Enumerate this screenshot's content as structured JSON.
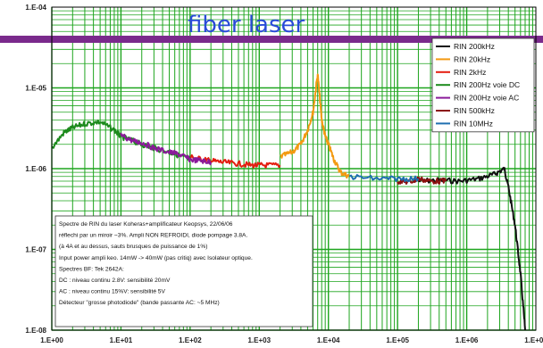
{
  "chart_data": {
    "type": "line",
    "title": "fiber laser",
    "title_color": "#2a4bd8",
    "x_scale": "log",
    "y_scale": "log",
    "xlim": [
      1,
      10000000
    ],
    "ylim": [
      1e-08,
      0.0001
    ],
    "x_tick_labels": [
      "1.E+00",
      "1.E+01",
      "1.E+02",
      "1.E+03",
      "1.E+04",
      "1.E+05",
      "1.E+06",
      "1.E+07"
    ],
    "y_tick_labels": [
      "1.E-04",
      "1.E-05",
      "1.E-06",
      "1.E-07",
      "1.E-08"
    ],
    "grid": "vertical minor+major lines green, horizontal major lines",
    "grid_color": "#1ea51e",
    "reference_band_color": "#7a2a8c",
    "reference_band_y": 4e-05,
    "legend_position": "top-right",
    "series": [
      {
        "name": "RIN 200kHz",
        "color": "#111111",
        "points": [
          [
            200000,
            7e-07
          ],
          [
            400000,
            7.2e-07
          ],
          [
            800000,
            7e-07
          ],
          [
            1500000,
            7.5e-07
          ],
          [
            2500000,
            8.5e-07
          ],
          [
            3500000,
            1e-06
          ],
          [
            4000000,
            6e-07
          ],
          [
            5000000,
            2e-07
          ],
          [
            6000000,
            5e-08
          ],
          [
            7000000,
            1e-08
          ]
        ]
      },
      {
        "name": "RIN 20kHz",
        "color": "#f39a12",
        "points": [
          [
            2000,
            1.4e-06
          ],
          [
            3000,
            1.6e-06
          ],
          [
            4000,
            2e-06
          ],
          [
            5000,
            3e-06
          ],
          [
            6000,
            5e-06
          ],
          [
            7000,
            1.5e-05
          ],
          [
            8000,
            4e-06
          ],
          [
            9000,
            2.5e-06
          ],
          [
            10000,
            2e-06
          ],
          [
            12000,
            1.3e-06
          ],
          [
            15000,
            9e-07
          ],
          [
            20000,
            8e-07
          ]
        ]
      },
      {
        "name": "RIN 2kHz",
        "color": "#e41e10",
        "points": [
          [
            100,
            1.4e-06
          ],
          [
            150,
            1.3e-06
          ],
          [
            200,
            1.25e-06
          ],
          [
            300,
            1.2e-06
          ],
          [
            500,
            1.15e-06
          ],
          [
            800,
            1.1e-06
          ],
          [
            1200,
            1.1e-06
          ],
          [
            2000,
            1.1e-06
          ]
        ]
      },
      {
        "name": "RIN 200Hz voie DC",
        "color": "#1c8a1c",
        "points": [
          [
            1,
            1.8e-06
          ],
          [
            1.5,
            2.8e-06
          ],
          [
            2,
            3.2e-06
          ],
          [
            3,
            3.6e-06
          ],
          [
            5,
            3.8e-06
          ],
          [
            8,
            3e-06
          ],
          [
            10,
            2.5e-06
          ],
          [
            15,
            2.2e-06
          ],
          [
            20,
            2e-06
          ],
          [
            30,
            1.8e-06
          ],
          [
            50,
            1.6e-06
          ],
          [
            80,
            1.4e-06
          ],
          [
            100,
            1.3e-06
          ]
        ]
      },
      {
        "name": "RIN 200Hz voie AC",
        "color": "#8a1a9a",
        "points": [
          [
            10,
            2.6e-06
          ],
          [
            15,
            2.2e-06
          ],
          [
            20,
            2.1e-06
          ],
          [
            30,
            1.8e-06
          ],
          [
            50,
            1.6e-06
          ],
          [
            70,
            1.5e-06
          ],
          [
            100,
            1.3e-06
          ],
          [
            150,
            1.25e-06
          ],
          [
            200,
            1.2e-06
          ]
        ]
      },
      {
        "name": "RIN 500kHz",
        "color": "#8b1010",
        "points": [
          [
            100000,
            7e-07
          ],
          [
            150000,
            6.8e-07
          ],
          [
            200000,
            7.5e-07
          ],
          [
            300000,
            7e-07
          ],
          [
            500000,
            7e-07
          ]
        ]
      },
      {
        "name": "RIN 10MHz",
        "color": "#1e6fb0",
        "points": [
          [
            20000,
            8e-07
          ],
          [
            50000,
            7.5e-07
          ],
          [
            100000,
            7.5e-07
          ],
          [
            200000,
            7.5e-07
          ]
        ]
      }
    ],
    "annotation_lines": [
      "Spectre de RIN du laser Koheras+amplificateur Keopsys, 22/06/06",
      "réflechi par un miroir ~3%. Ampli NON REFROIDI, diode pompage 3.8A.",
      "(à 4A et au dessus, sauts brusques de puissance de 1%)",
      "Input power ampli keo. 14mW -> 40mW (pas critiq) avec Isolateur optique.",
      "Spectres BF: Tek 2642A:",
      "     DC : niveau continu 2.8V: sensibilité 20mV",
      "     AC : niveau continu 15%V: sensibilité 5V",
      "Détecteur \"grosse photodiode\" (bande passante AC: ~5 MHz)"
    ]
  }
}
